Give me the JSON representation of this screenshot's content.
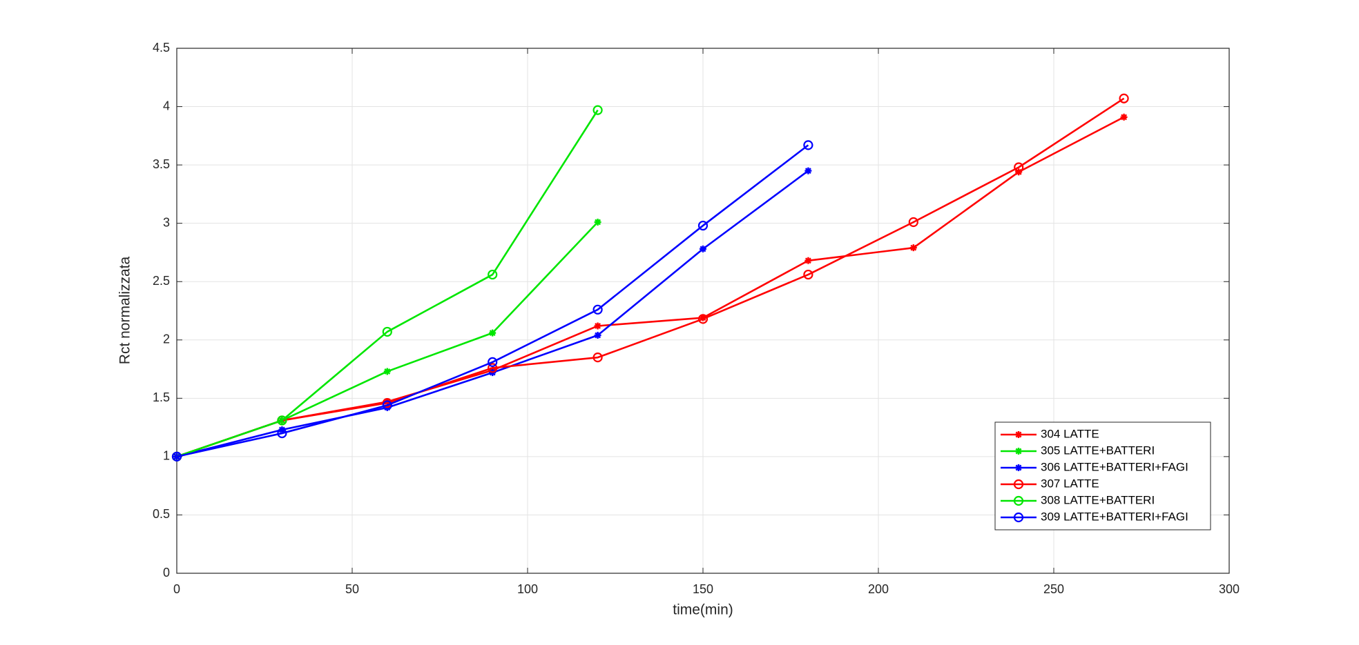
{
  "chart_data": {
    "type": "line",
    "x_label": "time(min)",
    "y_label": "Rct normalizzata",
    "xlim": [
      0,
      300
    ],
    "xticks": [
      0,
      50,
      100,
      150,
      200,
      250,
      300
    ],
    "ylim": [
      0,
      4.5
    ],
    "yticks": [
      0,
      0.5,
      1,
      1.5,
      2,
      2.5,
      3,
      3.5,
      4,
      4.5
    ],
    "grid": true,
    "legend": "lower right",
    "series": [
      {
        "name": "304 LATTE",
        "color": "#ff0000",
        "marker": "star",
        "x": [
          0,
          30,
          60,
          90,
          120,
          150,
          180,
          210,
          240,
          270
        ],
        "values": [
          1,
          1.31,
          1.47,
          1.74,
          2.12,
          2.19,
          2.68,
          2.79,
          3.44,
          3.91
        ]
      },
      {
        "name": "305 LATTE+BATTERI",
        "color": "#00e600",
        "marker": "star",
        "x": [
          0,
          30,
          60,
          90,
          120
        ],
        "values": [
          1,
          1.31,
          1.73,
          2.06,
          3.01
        ]
      },
      {
        "name": "306 LATTE+BATTERI+FAGI",
        "color": "#0000ff",
        "marker": "star",
        "x": [
          0,
          30,
          60,
          90,
          120,
          150,
          180
        ],
        "values": [
          1,
          1.23,
          1.42,
          1.72,
          2.04,
          2.78,
          3.45
        ]
      },
      {
        "name": "307 LATTE",
        "color": "#ff0000",
        "marker": "circle",
        "x": [
          0,
          30,
          60,
          90,
          120,
          150,
          180,
          210,
          240,
          270
        ],
        "values": [
          1,
          1.31,
          1.46,
          1.76,
          1.85,
          2.18,
          2.56,
          3.01,
          3.48,
          4.07
        ]
      },
      {
        "name": "308 LATTE+BATTERI",
        "color": "#00e600",
        "marker": "circle",
        "x": [
          0,
          30,
          60,
          90,
          120
        ],
        "values": [
          1,
          1.31,
          2.07,
          2.56,
          3.97
        ]
      },
      {
        "name": "309 LATTE+BATTERI+FAGI",
        "color": "#0000ff",
        "marker": "circle",
        "x": [
          0,
          30,
          60,
          90,
          120,
          150,
          180
        ],
        "values": [
          1,
          1.2,
          1.44,
          1.81,
          2.26,
          2.98,
          3.67
        ]
      }
    ]
  }
}
